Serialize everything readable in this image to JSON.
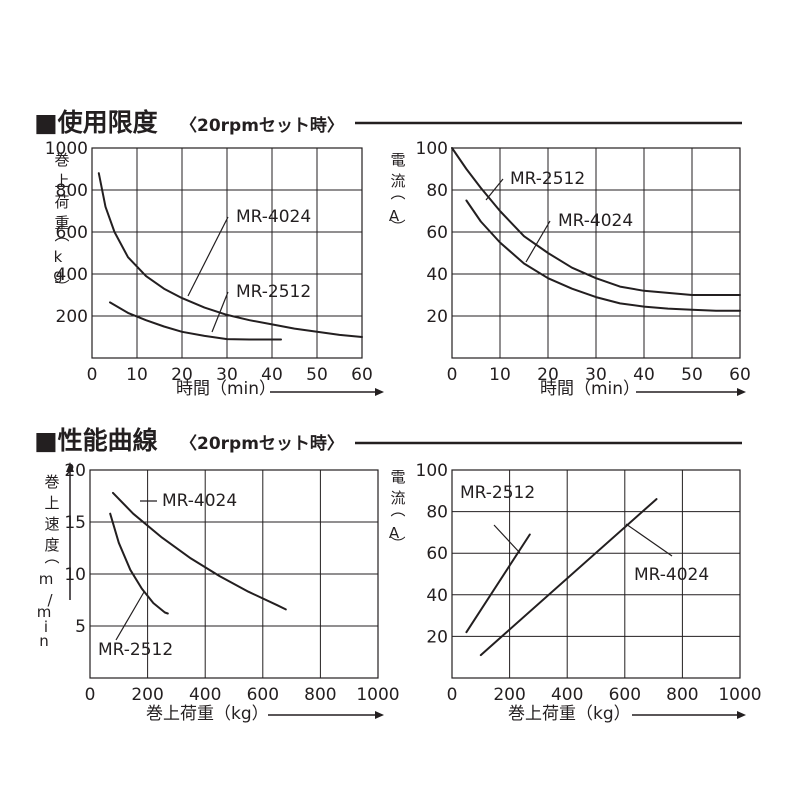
{
  "sections": [
    {
      "title": "■使用限度",
      "subtitle": "〈20rpmセット時〉"
    },
    {
      "title": "■性能曲線",
      "subtitle": "〈20rpmセット時〉"
    }
  ],
  "chart_data": [
    {
      "type": "line",
      "xlabel": "時間（min）",
      "ylabel": "巻上荷重（kg）",
      "xlim": [
        0,
        60
      ],
      "ylim": [
        0,
        1000
      ],
      "xticks": [
        0,
        10,
        20,
        30,
        40,
        50,
        60
      ],
      "yticks": [
        200,
        400,
        600,
        800,
        1000
      ],
      "grid": true,
      "series": [
        {
          "name": "MR-4024",
          "x": [
            1.5,
            3,
            5,
            8,
            12,
            16,
            20,
            25,
            30,
            35,
            40,
            45,
            50,
            55,
            60
          ],
          "y": [
            880,
            720,
            600,
            480,
            390,
            330,
            285,
            240,
            205,
            180,
            160,
            140,
            125,
            110,
            100
          ]
        },
        {
          "name": "MR-2512",
          "x": [
            4,
            8,
            12,
            16,
            20,
            25,
            30,
            35,
            40,
            42
          ],
          "y": [
            265,
            215,
            180,
            150,
            125,
            105,
            90,
            88,
            88,
            88
          ]
        }
      ]
    },
    {
      "type": "line",
      "xlabel": "時間（min）",
      "ylabel": "電流（A）",
      "xlim": [
        0,
        60
      ],
      "ylim": [
        0,
        100
      ],
      "xticks": [
        0,
        10,
        20,
        30,
        40,
        50,
        60
      ],
      "yticks": [
        20,
        40,
        60,
        80,
        100
      ],
      "grid": true,
      "series": [
        {
          "name": "MR-2512",
          "x": [
            0,
            3,
            6,
            10,
            15,
            20,
            25,
            30,
            35,
            40,
            45,
            50,
            55,
            60
          ],
          "y": [
            100,
            90,
            81,
            70,
            58,
            50,
            43,
            38,
            34,
            32,
            31,
            30,
            30,
            30
          ]
        },
        {
          "name": "MR-4024",
          "x": [
            3,
            6,
            10,
            15,
            20,
            25,
            30,
            35,
            40,
            45,
            50,
            55,
            60
          ],
          "y": [
            75,
            65,
            55,
            45,
            38,
            33,
            29,
            26,
            24.5,
            23.5,
            23,
            22.5,
            22.5
          ]
        }
      ]
    },
    {
      "type": "line",
      "xlabel": "巻上荷重（kg）",
      "ylabel": "巻上速度（m/min）",
      "xlim": [
        0,
        1000
      ],
      "ylim": [
        0,
        20
      ],
      "xticks": [
        0,
        200,
        400,
        600,
        800,
        1000
      ],
      "yticks": [
        5,
        10,
        15,
        20
      ],
      "grid": true,
      "series": [
        {
          "name": "MR-4024",
          "x": [
            80,
            150,
            250,
            350,
            450,
            550,
            650,
            680
          ],
          "y": [
            17.8,
            15.8,
            13.5,
            11.5,
            9.8,
            8.3,
            7,
            6.6
          ]
        },
        {
          "name": "MR-2512",
          "x": [
            70,
            100,
            140,
            180,
            220,
            260,
            270
          ],
          "y": [
            15.8,
            13,
            10.4,
            8.6,
            7.2,
            6.3,
            6.2
          ]
        }
      ]
    },
    {
      "type": "line",
      "xlabel": "巻上荷重（kg）",
      "ylabel": "電流（A）",
      "xlim": [
        0,
        1000
      ],
      "ylim": [
        0,
        100
      ],
      "xticks": [
        0,
        200,
        400,
        600,
        800,
        1000
      ],
      "yticks": [
        20,
        40,
        60,
        80,
        100
      ],
      "grid": true,
      "series": [
        {
          "name": "MR-2512",
          "x": [
            50,
            270
          ],
          "y": [
            22,
            69
          ]
        },
        {
          "name": "MR-4024",
          "x": [
            100,
            710
          ],
          "y": [
            11,
            86
          ]
        }
      ]
    }
  ]
}
